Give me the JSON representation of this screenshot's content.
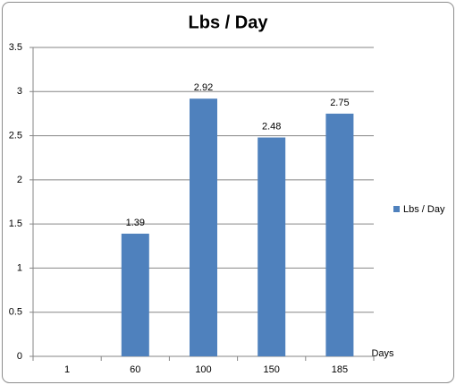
{
  "chart_data": {
    "type": "bar",
    "title": "Lbs / Day",
    "x_label": "Days",
    "categories": [
      "1",
      "60",
      "100",
      "150",
      "185"
    ],
    "series": [
      {
        "name": "Lbs / Day",
        "color": "#4f81bd",
        "values": [
          null,
          1.39,
          2.92,
          2.48,
          2.75
        ]
      }
    ],
    "ylim": [
      0,
      3.5
    ],
    "yticks": [
      0,
      0.5,
      1,
      1.5,
      2,
      2.5,
      3,
      3.5
    ],
    "grid": true,
    "legend": "right"
  }
}
